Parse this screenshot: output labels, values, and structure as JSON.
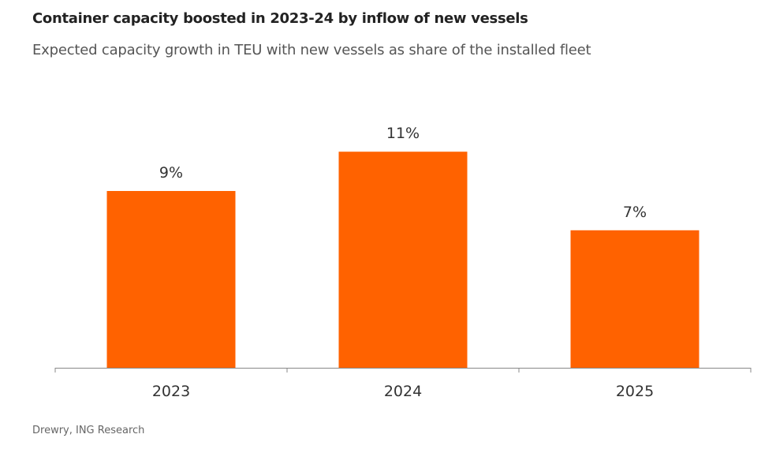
{
  "header": {
    "title": "Container capacity boosted in 2023-24 by inflow of new vessels",
    "subtitle": "Expected capacity growth in TEU with new vessels as share of the installed fleet"
  },
  "footer": {
    "source": "Drewry, ING Research"
  },
  "chart_data": {
    "type": "bar",
    "title": "Container capacity boosted in 2023-24 by inflow of new vessels",
    "subtitle": "Expected capacity growth in TEU with new vessels as share of the installed fleet",
    "categories": [
      "2023",
      "2024",
      "2025"
    ],
    "values": [
      9,
      11,
      7
    ],
    "value_labels": [
      "9%",
      "11%",
      "7%"
    ],
    "ylim": [
      0,
      13.5
    ],
    "grid": false,
    "legend": "none",
    "colors": {
      "bar": "#FF6200",
      "axis": "#888888",
      "text": "#333333"
    }
  }
}
